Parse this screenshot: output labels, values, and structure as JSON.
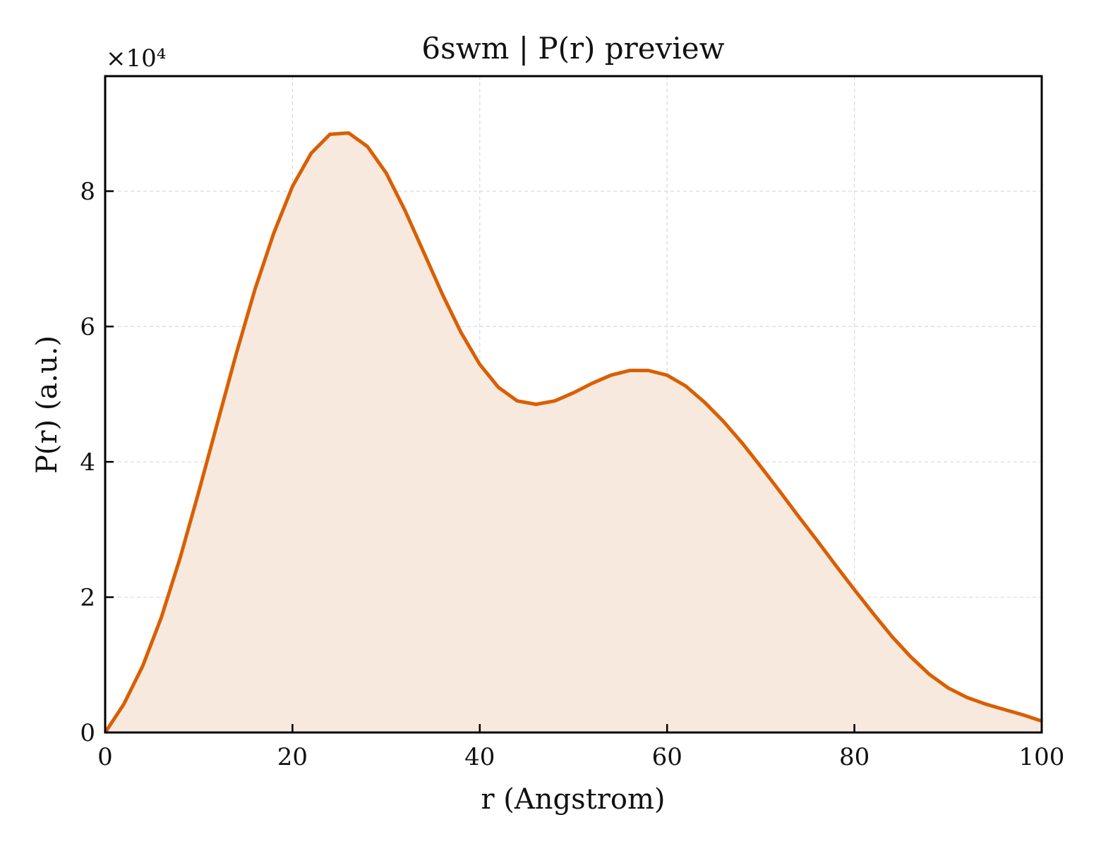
{
  "chart_data": {
    "type": "area",
    "title": "6swm | P(r) preview",
    "xlabel": "r (Angstrom)",
    "ylabel": "P(r) (a.u.)",
    "y_multiplier_label": "×10⁴",
    "xlim": [
      0,
      100
    ],
    "ylim": [
      0,
      9.7
    ],
    "x_ticks": [
      0,
      20,
      40,
      60,
      80,
      100
    ],
    "y_ticks": [
      0,
      2,
      4,
      6,
      8
    ],
    "grid": true,
    "grid_style": "dashed",
    "legend": "none",
    "colors": {
      "line": "#d95f02",
      "fill": "#f8e9de",
      "grid": "#d8d8d8",
      "axes": "#000000"
    },
    "series": [
      {
        "x": [
          0,
          2,
          4,
          6,
          8,
          10,
          12,
          14,
          16,
          18,
          20,
          22,
          24,
          26,
          28,
          30,
          32,
          34,
          36,
          38,
          40,
          42,
          44,
          46,
          48,
          50,
          52,
          54,
          56,
          58,
          60,
          62,
          64,
          66,
          68,
          70,
          72,
          74,
          76,
          78,
          80,
          82,
          84,
          86,
          88,
          90,
          92,
          94,
          96,
          98,
          100
        ],
        "y": [
          0,
          0.42,
          0.98,
          1.7,
          2.58,
          3.56,
          4.58,
          5.6,
          6.55,
          7.38,
          8.07,
          8.56,
          8.84,
          8.86,
          8.66,
          8.27,
          7.72,
          7.1,
          6.48,
          5.91,
          5.44,
          5.1,
          4.9,
          4.85,
          4.9,
          5.02,
          5.16,
          5.28,
          5.35,
          5.35,
          5.28,
          5.12,
          4.88,
          4.6,
          4.28,
          3.93,
          3.57,
          3.2,
          2.84,
          2.47,
          2.11,
          1.76,
          1.42,
          1.12,
          0.86,
          0.66,
          0.52,
          0.42,
          0.34,
          0.26,
          0.17
        ]
      }
    ]
  }
}
